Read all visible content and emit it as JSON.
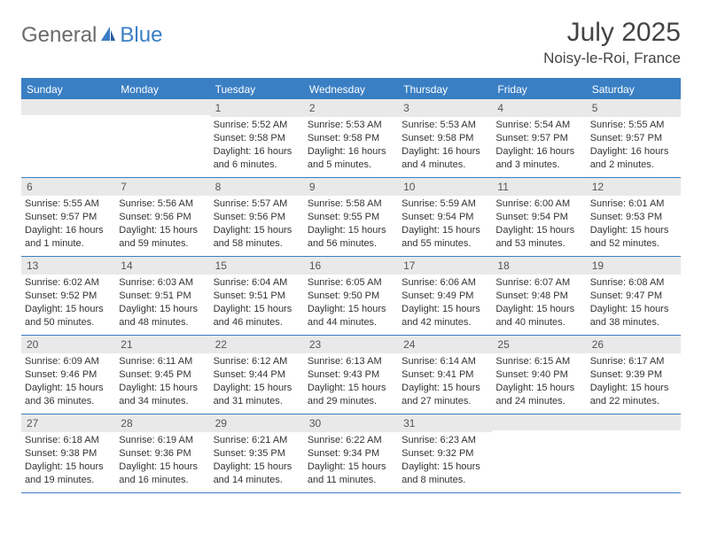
{
  "brand": {
    "part1": "General",
    "part2": "Blue"
  },
  "header": {
    "month_title": "July 2025",
    "location": "Noisy-le-Roi, France"
  },
  "weekdays": [
    "Sunday",
    "Monday",
    "Tuesday",
    "Wednesday",
    "Thursday",
    "Friday",
    "Saturday"
  ],
  "colors": {
    "accent": "#3a7fc4",
    "header_bg": "#3a7fc4",
    "daynum_bg": "#e9e9e9",
    "text": "#333333",
    "logo_gray": "#6b6b6b"
  },
  "weeks": [
    [
      {
        "n": "",
        "sunrise": "",
        "sunset": "",
        "daylight": ""
      },
      {
        "n": "",
        "sunrise": "",
        "sunset": "",
        "daylight": ""
      },
      {
        "n": "1",
        "sunrise": "Sunrise: 5:52 AM",
        "sunset": "Sunset: 9:58 PM",
        "daylight": "Daylight: 16 hours and 6 minutes."
      },
      {
        "n": "2",
        "sunrise": "Sunrise: 5:53 AM",
        "sunset": "Sunset: 9:58 PM",
        "daylight": "Daylight: 16 hours and 5 minutes."
      },
      {
        "n": "3",
        "sunrise": "Sunrise: 5:53 AM",
        "sunset": "Sunset: 9:58 PM",
        "daylight": "Daylight: 16 hours and 4 minutes."
      },
      {
        "n": "4",
        "sunrise": "Sunrise: 5:54 AM",
        "sunset": "Sunset: 9:57 PM",
        "daylight": "Daylight: 16 hours and 3 minutes."
      },
      {
        "n": "5",
        "sunrise": "Sunrise: 5:55 AM",
        "sunset": "Sunset: 9:57 PM",
        "daylight": "Daylight: 16 hours and 2 minutes."
      }
    ],
    [
      {
        "n": "6",
        "sunrise": "Sunrise: 5:55 AM",
        "sunset": "Sunset: 9:57 PM",
        "daylight": "Daylight: 16 hours and 1 minute."
      },
      {
        "n": "7",
        "sunrise": "Sunrise: 5:56 AM",
        "sunset": "Sunset: 9:56 PM",
        "daylight": "Daylight: 15 hours and 59 minutes."
      },
      {
        "n": "8",
        "sunrise": "Sunrise: 5:57 AM",
        "sunset": "Sunset: 9:56 PM",
        "daylight": "Daylight: 15 hours and 58 minutes."
      },
      {
        "n": "9",
        "sunrise": "Sunrise: 5:58 AM",
        "sunset": "Sunset: 9:55 PM",
        "daylight": "Daylight: 15 hours and 56 minutes."
      },
      {
        "n": "10",
        "sunrise": "Sunrise: 5:59 AM",
        "sunset": "Sunset: 9:54 PM",
        "daylight": "Daylight: 15 hours and 55 minutes."
      },
      {
        "n": "11",
        "sunrise": "Sunrise: 6:00 AM",
        "sunset": "Sunset: 9:54 PM",
        "daylight": "Daylight: 15 hours and 53 minutes."
      },
      {
        "n": "12",
        "sunrise": "Sunrise: 6:01 AM",
        "sunset": "Sunset: 9:53 PM",
        "daylight": "Daylight: 15 hours and 52 minutes."
      }
    ],
    [
      {
        "n": "13",
        "sunrise": "Sunrise: 6:02 AM",
        "sunset": "Sunset: 9:52 PM",
        "daylight": "Daylight: 15 hours and 50 minutes."
      },
      {
        "n": "14",
        "sunrise": "Sunrise: 6:03 AM",
        "sunset": "Sunset: 9:51 PM",
        "daylight": "Daylight: 15 hours and 48 minutes."
      },
      {
        "n": "15",
        "sunrise": "Sunrise: 6:04 AM",
        "sunset": "Sunset: 9:51 PM",
        "daylight": "Daylight: 15 hours and 46 minutes."
      },
      {
        "n": "16",
        "sunrise": "Sunrise: 6:05 AM",
        "sunset": "Sunset: 9:50 PM",
        "daylight": "Daylight: 15 hours and 44 minutes."
      },
      {
        "n": "17",
        "sunrise": "Sunrise: 6:06 AM",
        "sunset": "Sunset: 9:49 PM",
        "daylight": "Daylight: 15 hours and 42 minutes."
      },
      {
        "n": "18",
        "sunrise": "Sunrise: 6:07 AM",
        "sunset": "Sunset: 9:48 PM",
        "daylight": "Daylight: 15 hours and 40 minutes."
      },
      {
        "n": "19",
        "sunrise": "Sunrise: 6:08 AM",
        "sunset": "Sunset: 9:47 PM",
        "daylight": "Daylight: 15 hours and 38 minutes."
      }
    ],
    [
      {
        "n": "20",
        "sunrise": "Sunrise: 6:09 AM",
        "sunset": "Sunset: 9:46 PM",
        "daylight": "Daylight: 15 hours and 36 minutes."
      },
      {
        "n": "21",
        "sunrise": "Sunrise: 6:11 AM",
        "sunset": "Sunset: 9:45 PM",
        "daylight": "Daylight: 15 hours and 34 minutes."
      },
      {
        "n": "22",
        "sunrise": "Sunrise: 6:12 AM",
        "sunset": "Sunset: 9:44 PM",
        "daylight": "Daylight: 15 hours and 31 minutes."
      },
      {
        "n": "23",
        "sunrise": "Sunrise: 6:13 AM",
        "sunset": "Sunset: 9:43 PM",
        "daylight": "Daylight: 15 hours and 29 minutes."
      },
      {
        "n": "24",
        "sunrise": "Sunrise: 6:14 AM",
        "sunset": "Sunset: 9:41 PM",
        "daylight": "Daylight: 15 hours and 27 minutes."
      },
      {
        "n": "25",
        "sunrise": "Sunrise: 6:15 AM",
        "sunset": "Sunset: 9:40 PM",
        "daylight": "Daylight: 15 hours and 24 minutes."
      },
      {
        "n": "26",
        "sunrise": "Sunrise: 6:17 AM",
        "sunset": "Sunset: 9:39 PM",
        "daylight": "Daylight: 15 hours and 22 minutes."
      }
    ],
    [
      {
        "n": "27",
        "sunrise": "Sunrise: 6:18 AM",
        "sunset": "Sunset: 9:38 PM",
        "daylight": "Daylight: 15 hours and 19 minutes."
      },
      {
        "n": "28",
        "sunrise": "Sunrise: 6:19 AM",
        "sunset": "Sunset: 9:36 PM",
        "daylight": "Daylight: 15 hours and 16 minutes."
      },
      {
        "n": "29",
        "sunrise": "Sunrise: 6:21 AM",
        "sunset": "Sunset: 9:35 PM",
        "daylight": "Daylight: 15 hours and 14 minutes."
      },
      {
        "n": "30",
        "sunrise": "Sunrise: 6:22 AM",
        "sunset": "Sunset: 9:34 PM",
        "daylight": "Daylight: 15 hours and 11 minutes."
      },
      {
        "n": "31",
        "sunrise": "Sunrise: 6:23 AM",
        "sunset": "Sunset: 9:32 PM",
        "daylight": "Daylight: 15 hours and 8 minutes."
      },
      {
        "n": "",
        "sunrise": "",
        "sunset": "",
        "daylight": ""
      },
      {
        "n": "",
        "sunrise": "",
        "sunset": "",
        "daylight": ""
      }
    ]
  ]
}
